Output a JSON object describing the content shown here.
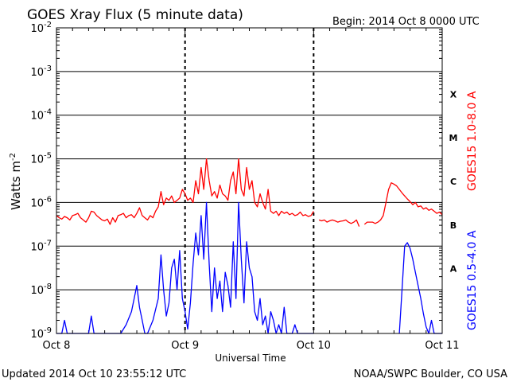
{
  "chart_data": {
    "type": "line",
    "title": "GOES Xray Flux (5 minute data)",
    "begin_text": "Begin:  2014 Oct 8 0000 UTC",
    "xlabel": "Universal Time",
    "ylabel_base": "Watts m",
    "ylabel_exp": "-2",
    "yscale": "log",
    "ylim": [
      1e-09,
      0.01
    ],
    "xlim_hours": [
      0,
      72
    ],
    "x_ticks": [
      {
        "label": "Oct 8",
        "hour": 0
      },
      {
        "label": "Oct 9",
        "hour": 24
      },
      {
        "label": "Oct 10",
        "hour": 48
      },
      {
        "label": "Oct 11",
        "hour": 72
      }
    ],
    "y_ticks": [
      {
        "exp": -9,
        "label": "10",
        "sup": "-9"
      },
      {
        "exp": -8,
        "label": "10",
        "sup": "-8"
      },
      {
        "exp": -7,
        "label": "10",
        "sup": "-7"
      },
      {
        "exp": -6,
        "label": "10",
        "sup": "-6"
      },
      {
        "exp": -5,
        "label": "10",
        "sup": "-5"
      },
      {
        "exp": -4,
        "label": "10",
        "sup": "-4"
      },
      {
        "exp": -3,
        "label": "10",
        "sup": "-3"
      },
      {
        "exp": -2,
        "label": "10",
        "sup": "-2"
      }
    ],
    "flare_classes": [
      {
        "label": "A",
        "exp": -8
      },
      {
        "label": "B",
        "exp": -7
      },
      {
        "label": "C",
        "exp": -6
      },
      {
        "label": "M",
        "exp": -5
      },
      {
        "label": "X",
        "exp": -4
      }
    ],
    "series": [
      {
        "name": "GOES15 1.0-8.0 A",
        "color": "#ff0000",
        "points": [
          [
            0,
            -6.3
          ],
          [
            0.5,
            -6.35
          ],
          [
            1,
            -6.38
          ],
          [
            1.5,
            -6.32
          ],
          [
            2,
            -6.35
          ],
          [
            2.5,
            -6.4
          ],
          [
            3,
            -6.3
          ],
          [
            3.5,
            -6.28
          ],
          [
            4,
            -6.25
          ],
          [
            4.5,
            -6.35
          ],
          [
            5,
            -6.4
          ],
          [
            5.5,
            -6.45
          ],
          [
            6,
            -6.35
          ],
          [
            6.5,
            -6.2
          ],
          [
            7,
            -6.22
          ],
          [
            7.5,
            -6.3
          ],
          [
            8,
            -6.35
          ],
          [
            8.5,
            -6.4
          ],
          [
            9,
            -6.42
          ],
          [
            9.5,
            -6.38
          ],
          [
            10,
            -6.5
          ],
          [
            10.5,
            -6.35
          ],
          [
            11,
            -6.45
          ],
          [
            11.5,
            -6.3
          ],
          [
            12,
            -6.28
          ],
          [
            12.5,
            -6.25
          ],
          [
            13,
            -6.35
          ],
          [
            13.5,
            -6.3
          ],
          [
            14,
            -6.28
          ],
          [
            14.5,
            -6.35
          ],
          [
            15,
            -6.25
          ],
          [
            15.5,
            -6.12
          ],
          [
            16,
            -6.3
          ],
          [
            16.5,
            -6.35
          ],
          [
            17,
            -6.4
          ],
          [
            17.5,
            -6.3
          ],
          [
            18,
            -6.35
          ],
          [
            18.5,
            -6.2
          ],
          [
            19,
            -6.1
          ],
          [
            19.5,
            -5.75
          ],
          [
            20,
            -6.05
          ],
          [
            20.5,
            -5.9
          ],
          [
            21,
            -5.95
          ],
          [
            21.5,
            -5.85
          ],
          [
            22,
            -6.0
          ],
          [
            22.5,
            -5.95
          ],
          [
            23,
            -5.9
          ],
          [
            23.5,
            -5.7
          ],
          [
            24,
            -5.8
          ],
          [
            24.5,
            -5.95
          ],
          [
            25,
            -5.9
          ],
          [
            25.5,
            -6.0
          ],
          [
            26,
            -5.5
          ],
          [
            26.5,
            -5.8
          ],
          [
            27,
            -5.2
          ],
          [
            27.5,
            -5.7
          ],
          [
            28,
            -5.0
          ],
          [
            28.5,
            -5.5
          ],
          [
            29,
            -5.85
          ],
          [
            29.5,
            -5.75
          ],
          [
            30,
            -5.9
          ],
          [
            30.5,
            -5.6
          ],
          [
            31,
            -5.8
          ],
          [
            31.5,
            -5.85
          ],
          [
            32,
            -5.95
          ],
          [
            32.5,
            -5.5
          ],
          [
            33,
            -5.3
          ],
          [
            33.5,
            -5.8
          ],
          [
            34,
            -5.0
          ],
          [
            34.5,
            -5.7
          ],
          [
            35,
            -5.85
          ],
          [
            35.5,
            -5.2
          ],
          [
            36,
            -5.7
          ],
          [
            36.5,
            -5.5
          ],
          [
            37,
            -6.0
          ],
          [
            37.5,
            -6.1
          ],
          [
            38,
            -5.8
          ],
          [
            38.5,
            -6.0
          ],
          [
            39,
            -6.15
          ],
          [
            39.5,
            -5.7
          ],
          [
            40,
            -6.2
          ],
          [
            40.5,
            -6.25
          ],
          [
            41,
            -6.2
          ],
          [
            41.5,
            -6.3
          ],
          [
            42,
            -6.2
          ],
          [
            42.5,
            -6.25
          ],
          [
            43,
            -6.22
          ],
          [
            43.5,
            -6.28
          ],
          [
            44,
            -6.25
          ],
          [
            44.5,
            -6.3
          ],
          [
            45,
            -6.28
          ],
          [
            45.5,
            -6.22
          ],
          [
            46,
            -6.3
          ],
          [
            46.5,
            -6.28
          ],
          [
            47,
            -6.32
          ],
          [
            47.5,
            -6.3
          ],
          [
            48,
            -6.2
          ],
          [
            null,
            null
          ],
          [
            49,
            -6.4
          ],
          [
            49.5,
            -6.42
          ],
          [
            50,
            -6.4
          ],
          [
            50.5,
            -6.45
          ],
          [
            51,
            -6.42
          ],
          [
            51.5,
            -6.4
          ],
          [
            52,
            -6.42
          ],
          [
            52.5,
            -6.45
          ],
          [
            53,
            -6.43
          ],
          [
            53.5,
            -6.42
          ],
          [
            54,
            -6.4
          ],
          [
            54.5,
            -6.45
          ],
          [
            55,
            -6.48
          ],
          [
            55.5,
            -6.45
          ],
          [
            56,
            -6.4
          ],
          [
            56.5,
            -6.55
          ],
          [
            null,
            null
          ],
          [
            57.5,
            -6.5
          ],
          [
            58,
            -6.45
          ],
          [
            58.5,
            -6.45
          ],
          [
            59,
            -6.45
          ],
          [
            59.5,
            -6.48
          ],
          [
            60,
            -6.45
          ],
          [
            60.5,
            -6.4
          ],
          [
            61,
            -6.3
          ],
          [
            61.5,
            -6.0
          ],
          [
            62,
            -5.7
          ],
          [
            62.5,
            -5.55
          ],
          [
            63,
            -5.58
          ],
          [
            63.5,
            -5.62
          ],
          [
            64,
            -5.7
          ],
          [
            64.5,
            -5.78
          ],
          [
            65,
            -5.85
          ],
          [
            65.5,
            -5.92
          ],
          [
            66,
            -5.98
          ],
          [
            66.5,
            -6.05
          ],
          [
            67,
            -6.0
          ],
          [
            67.5,
            -6.1
          ],
          [
            68,
            -6.08
          ],
          [
            68.5,
            -6.15
          ],
          [
            69,
            -6.12
          ],
          [
            69.5,
            -6.18
          ],
          [
            70,
            -6.15
          ],
          [
            70.5,
            -6.2
          ],
          [
            71,
            -6.25
          ],
          [
            71.5,
            -6.22
          ],
          [
            72,
            -6.28
          ]
        ]
      },
      {
        "name": "GOES15 0.5-4.0 A",
        "color": "#0000ff",
        "points": [
          [
            0,
            -9
          ],
          [
            1,
            -9
          ],
          [
            1.5,
            -8.7
          ],
          [
            2,
            -9
          ],
          [
            6,
            -9
          ],
          [
            6.5,
            -8.6
          ],
          [
            7,
            -9
          ],
          [
            12,
            -9
          ],
          [
            13,
            -8.8
          ],
          [
            14,
            -8.5
          ],
          [
            14.5,
            -8.2
          ],
          [
            15,
            -7.9
          ],
          [
            15.5,
            -8.4
          ],
          [
            16,
            -8.7
          ],
          [
            16.5,
            -9
          ],
          [
            17,
            -9
          ],
          [
            18,
            -8.7
          ],
          [
            19,
            -8.2
          ],
          [
            19.5,
            -7.2
          ],
          [
            20,
            -8.0
          ],
          [
            20.5,
            -8.6
          ],
          [
            21,
            -8.3
          ],
          [
            21.5,
            -7.5
          ],
          [
            22,
            -7.3
          ],
          [
            22.5,
            -8.0
          ],
          [
            23,
            -7.1
          ],
          [
            23.5,
            -8.2
          ],
          [
            24,
            -8.5
          ],
          [
            24.5,
            -8.9
          ],
          [
            25,
            -8.3
          ],
          [
            25.5,
            -7.4
          ],
          [
            26,
            -6.7
          ],
          [
            26.5,
            -7.2
          ],
          [
            27,
            -6.3
          ],
          [
            27.5,
            -7.3
          ],
          [
            28,
            -6.0
          ],
          [
            28.5,
            -7.4
          ],
          [
            29,
            -8.5
          ],
          [
            29.5,
            -7.5
          ],
          [
            30,
            -8.2
          ],
          [
            30.5,
            -7.8
          ],
          [
            31,
            -8.5
          ],
          [
            31.5,
            -7.6
          ],
          [
            32,
            -7.9
          ],
          [
            32.5,
            -8.4
          ],
          [
            33,
            -6.9
          ],
          [
            33.5,
            -8.2
          ],
          [
            34,
            -6.0
          ],
          [
            34.5,
            -7.3
          ],
          [
            35,
            -8.3
          ],
          [
            35.5,
            -6.9
          ],
          [
            36,
            -7.5
          ],
          [
            36.5,
            -7.7
          ],
          [
            37,
            -8.5
          ],
          [
            37.5,
            -8.7
          ],
          [
            38,
            -8.2
          ],
          [
            38.5,
            -8.8
          ],
          [
            39,
            -8.6
          ],
          [
            39.5,
            -9
          ],
          [
            40,
            -8.5
          ],
          [
            40.5,
            -8.7
          ],
          [
            41,
            -9
          ],
          [
            41.5,
            -8.8
          ],
          [
            42,
            -9
          ],
          [
            42.5,
            -8.4
          ],
          [
            43,
            -9
          ],
          [
            44,
            -9
          ],
          [
            44.5,
            -8.8
          ],
          [
            45,
            -9
          ],
          [
            48,
            -9
          ],
          [
            null,
            null
          ],
          [
            64,
            -9
          ],
          [
            64.5,
            -8.0
          ],
          [
            65,
            -7.0
          ],
          [
            65.5,
            -6.92
          ],
          [
            66,
            -7.05
          ],
          [
            66.5,
            -7.3
          ],
          [
            67,
            -7.6
          ],
          [
            67.5,
            -7.9
          ],
          [
            68,
            -8.2
          ],
          [
            68.5,
            -8.55
          ],
          [
            69,
            -8.85
          ],
          [
            69.5,
            -9
          ],
          [
            70,
            -8.7
          ],
          [
            70.5,
            -9
          ],
          [
            72,
            -9
          ]
        ]
      }
    ]
  },
  "footer": {
    "updated": "Updated 2014 Oct 10 23:55:12 UTC",
    "credit": "NOAA/SWPC Boulder, CO USA"
  }
}
